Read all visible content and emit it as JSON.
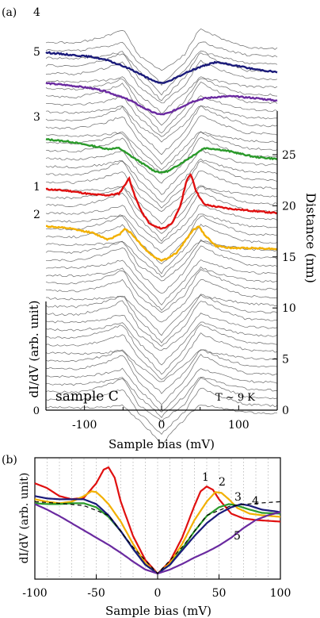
{
  "panel_a": {
    "label": "(a)",
    "ylabel": "dI/dV (arb. unit)",
    "xlabel": "Sample bias (mV)",
    "xticks": [
      "-100",
      "0",
      "100"
    ],
    "right_axis_label": "Distance (nm)",
    "right_ticks": [
      "0",
      "5",
      "10",
      "15",
      "20",
      "25"
    ],
    "sample_label": "sample C",
    "temp_label": "T ~ 9 K",
    "curve_labels": [
      "4",
      "5",
      "3",
      "1",
      "2"
    ]
  },
  "panel_b": {
    "label": "(b)",
    "ylabel": "dI/dV (arb. unit)",
    "xlabel": "Sample bias (mV)",
    "xticks": [
      "-100",
      "-50",
      "0",
      "50",
      "100"
    ],
    "curve_labels": [
      "1",
      "2",
      "3",
      "4",
      "5"
    ]
  },
  "colors": {
    "1": "#e01010",
    "2": "#f2b000",
    "3": "#2a9a2a",
    "4": "#1a1a7a",
    "5": "#6a2aa0",
    "bg": "#8a8a8a"
  },
  "chart_data": [
    {
      "type": "line",
      "title": "",
      "xlabel": "Sample bias (mV)",
      "ylabel": "dI/dV (arb. unit)",
      "y2label": "Distance (nm)",
      "xlim": [
        -150,
        150
      ],
      "y2lim": [
        0,
        30
      ],
      "ytick_left": [
        "0"
      ],
      "series": [
        {
          "name": "1",
          "color": "#e01010",
          "distance_nm": 21.2,
          "x": [
            -150,
            -120,
            -90,
            -70,
            -55,
            -42,
            -35,
            -25,
            -15,
            -5,
            0,
            5,
            15,
            25,
            32,
            38,
            45,
            55,
            70,
            90,
            120,
            150
          ],
          "y": [
            1.1,
            1.06,
            0.98,
            0.96,
            1.0,
            1.35,
            0.95,
            0.55,
            0.3,
            0.22,
            0.2,
            0.22,
            0.35,
            0.75,
            1.28,
            1.45,
            1.05,
            0.75,
            0.7,
            0.65,
            0.6,
            0.55
          ]
        },
        {
          "name": "2",
          "color": "#f2b000",
          "distance_nm": 18.0,
          "x": [
            -150,
            -120,
            -90,
            -70,
            -55,
            -48,
            -40,
            -30,
            -20,
            -10,
            0,
            10,
            20,
            30,
            40,
            48,
            55,
            70,
            90,
            120,
            150
          ],
          "y": [
            1.0,
            0.95,
            0.85,
            0.7,
            0.8,
            0.95,
            0.85,
            0.65,
            0.45,
            0.3,
            0.22,
            0.28,
            0.4,
            0.65,
            0.9,
            1.0,
            0.82,
            0.55,
            0.5,
            0.5,
            0.48
          ]
        },
        {
          "name": "3",
          "color": "#2a9a2a",
          "distance_nm": 26.5,
          "x": [
            -150,
            -120,
            -90,
            -70,
            -55,
            -40,
            -25,
            -10,
            0,
            10,
            25,
            40,
            55,
            70,
            90,
            120,
            150
          ],
          "y": [
            1.0,
            0.95,
            0.85,
            0.78,
            0.8,
            0.62,
            0.45,
            0.28,
            0.24,
            0.28,
            0.45,
            0.62,
            0.8,
            0.78,
            0.72,
            0.6,
            0.55
          ]
        },
        {
          "name": "5",
          "color": "#6a2aa0",
          "distance_nm": 32.0,
          "x": [
            -150,
            -120,
            -90,
            -70,
            -55,
            -40,
            -25,
            -10,
            0,
            10,
            25,
            40,
            55,
            70,
            90,
            120,
            150
          ],
          "y": [
            1.0,
            0.95,
            0.88,
            0.8,
            0.7,
            0.6,
            0.45,
            0.32,
            0.28,
            0.32,
            0.45,
            0.58,
            0.65,
            0.68,
            0.7,
            0.66,
            0.6
          ]
        },
        {
          "name": "4",
          "color": "#1a1a7a",
          "distance_nm": 35.0,
          "x": [
            -150,
            -120,
            -90,
            -70,
            -55,
            -40,
            -25,
            -10,
            0,
            10,
            25,
            40,
            55,
            70,
            90,
            120,
            150
          ],
          "y": [
            1.0,
            0.95,
            0.9,
            0.82,
            0.72,
            0.62,
            0.48,
            0.34,
            0.3,
            0.34,
            0.48,
            0.6,
            0.7,
            0.78,
            0.72,
            0.62,
            0.55
          ]
        }
      ]
    },
    {
      "type": "line",
      "title": "",
      "xlabel": "Sample bias (mV)",
      "ylabel": "dI/dV (arb. unit)",
      "xlim": [
        -100,
        100
      ],
      "ylim": [
        0,
        1.5
      ],
      "grid": "vertical dotted every 10 mV",
      "series": [
        {
          "name": "1",
          "color": "#e01010",
          "style": "solid",
          "x": [
            -100,
            -90,
            -80,
            -70,
            -60,
            -50,
            -44,
            -40,
            -35,
            -30,
            -20,
            -10,
            0,
            10,
            20,
            30,
            35,
            40,
            45,
            50,
            60,
            70,
            80,
            90,
            100
          ],
          "y": [
            1.18,
            1.12,
            1.02,
            0.98,
            1.0,
            1.18,
            1.35,
            1.38,
            1.25,
            0.95,
            0.52,
            0.22,
            0.05,
            0.2,
            0.5,
            0.9,
            1.08,
            1.14,
            1.1,
            0.98,
            0.8,
            0.74,
            0.72,
            0.71,
            0.7
          ]
        },
        {
          "name": "2",
          "color": "#f2b000",
          "style": "solid",
          "x": [
            -100,
            -90,
            -80,
            -70,
            -60,
            -54,
            -50,
            -45,
            -40,
            -30,
            -20,
            -10,
            0,
            10,
            20,
            30,
            40,
            47,
            52,
            58,
            65,
            75,
            85,
            100
          ],
          "y": [
            0.98,
            0.95,
            0.93,
            0.95,
            1.02,
            1.08,
            1.07,
            1.0,
            0.92,
            0.7,
            0.42,
            0.18,
            0.05,
            0.18,
            0.42,
            0.72,
            0.95,
            1.07,
            1.06,
            0.98,
            0.87,
            0.8,
            0.78,
            0.76
          ]
        },
        {
          "name": "3",
          "color": "#2a9a2a",
          "style": "solid",
          "x": [
            -100,
            -90,
            -80,
            -70,
            -60,
            -50,
            -40,
            -30,
            -20,
            -10,
            0,
            10,
            20,
            30,
            40,
            50,
            58,
            65,
            75,
            85,
            100
          ],
          "y": [
            0.93,
            0.92,
            0.92,
            0.93,
            0.93,
            0.88,
            0.76,
            0.58,
            0.36,
            0.16,
            0.05,
            0.16,
            0.36,
            0.58,
            0.77,
            0.88,
            0.92,
            0.9,
            0.85,
            0.81,
            0.8
          ]
        },
        {
          "name": "4",
          "color": "#1a1a7a",
          "style": "solid",
          "x": [
            -100,
            -90,
            -80,
            -70,
            -60,
            -50,
            -40,
            -30,
            -20,
            -10,
            0,
            10,
            20,
            30,
            40,
            50,
            60,
            68,
            75,
            85,
            100
          ],
          "y": [
            1.02,
            0.99,
            0.98,
            0.98,
            0.98,
            0.92,
            0.78,
            0.58,
            0.36,
            0.16,
            0.05,
            0.16,
            0.34,
            0.52,
            0.68,
            0.8,
            0.88,
            0.92,
            0.9,
            0.85,
            0.82
          ]
        },
        {
          "name": "5",
          "color": "#6a2aa0",
          "style": "solid",
          "x": [
            -100,
            -90,
            -80,
            -70,
            -60,
            -50,
            -40,
            -30,
            -20,
            -10,
            0,
            10,
            20,
            30,
            40,
            50,
            60,
            70,
            80,
            90,
            100
          ],
          "y": [
            0.92,
            0.85,
            0.77,
            0.68,
            0.59,
            0.5,
            0.41,
            0.31,
            0.2,
            0.1,
            0.05,
            0.1,
            0.17,
            0.25,
            0.32,
            0.4,
            0.5,
            0.62,
            0.72,
            0.78,
            0.82
          ]
        },
        {
          "name": "",
          "color": "#000000",
          "style": "dashed",
          "x": [
            -100,
            -80,
            -60,
            -40,
            -20,
            0,
            20,
            40,
            60,
            80,
            100
          ],
          "y": [
            0.95,
            0.93,
            0.9,
            0.78,
            0.38,
            0.05,
            0.38,
            0.78,
            0.9,
            0.93,
            0.95
          ]
        }
      ]
    }
  ]
}
